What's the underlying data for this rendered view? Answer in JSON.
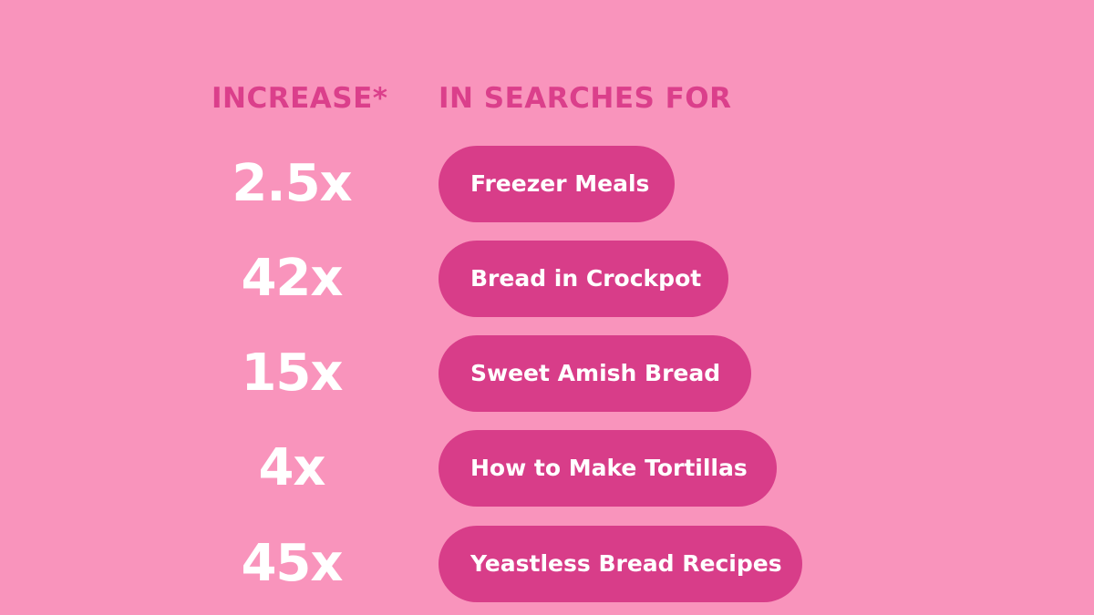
{
  "headers": {
    "increase": "INCREASE*",
    "searches": "IN SEARCHES FOR"
  },
  "rows": [
    {
      "multiplier": "2.5x",
      "term": "Freezer Meals"
    },
    {
      "multiplier": "42x",
      "term": "Bread in Crockpot"
    },
    {
      "multiplier": "15x",
      "term": "Sweet Amish Bread"
    },
    {
      "multiplier": "4x",
      "term": "How to Make Tortillas"
    },
    {
      "multiplier": "45x",
      "term": "Yeastless Bread Recipes"
    }
  ],
  "colors": {
    "background": "#f994bc",
    "accent": "#d83d89",
    "header_text": "#db3f8b",
    "value_text": "#ffffff"
  }
}
